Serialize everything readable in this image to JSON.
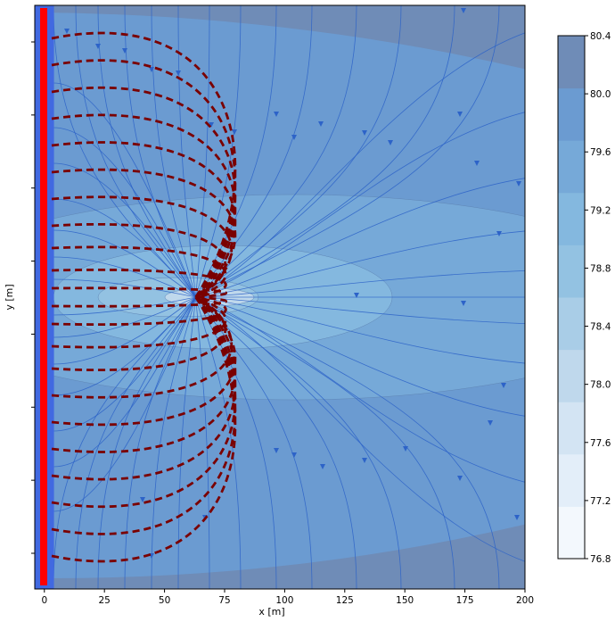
{
  "chart_data": {
    "type": "contour",
    "xlabel": "x [m]",
    "ylabel": "y [m]",
    "xlim": [
      -4,
      200
    ],
    "x_ticks": [
      0,
      25,
      50,
      75,
      100,
      125,
      150,
      175,
      200
    ],
    "x_tick_labels": [
      "0",
      "25",
      "50",
      "75",
      "100",
      "125",
      "150",
      "175",
      "200"
    ],
    "y_tick_count": 8,
    "well": {
      "x": 63,
      "y_fraction": 0.5
    },
    "boundary": {
      "x_from": -4,
      "x_to": 4
    },
    "contour_levels": [
      76.8,
      77.2,
      77.6,
      78.0,
      78.4,
      78.8,
      79.2,
      79.6,
      80.0,
      80.4
    ],
    "colorbar": {
      "tick_labels": [
        "76.8",
        "77.2",
        "77.6",
        "78.0",
        "78.4",
        "78.8",
        "79.2",
        "79.6",
        "80.0",
        "80.4"
      ],
      "colors": [
        "#f3f8fd",
        "#e3eef9",
        "#d3e4f3",
        "#bfd8ec",
        "#a9cde7",
        "#93c2e2",
        "#84b8df",
        "#76a9d8",
        "#6b9bd1",
        "#6f8cb7"
      ]
    },
    "grid": false,
    "series": [
      {
        "kind": "contour-fill"
      },
      {
        "kind": "streamlines",
        "color": "#2d63c8"
      },
      {
        "kind": "dashed-flowpaths",
        "color": "#7a0000"
      }
    ]
  }
}
